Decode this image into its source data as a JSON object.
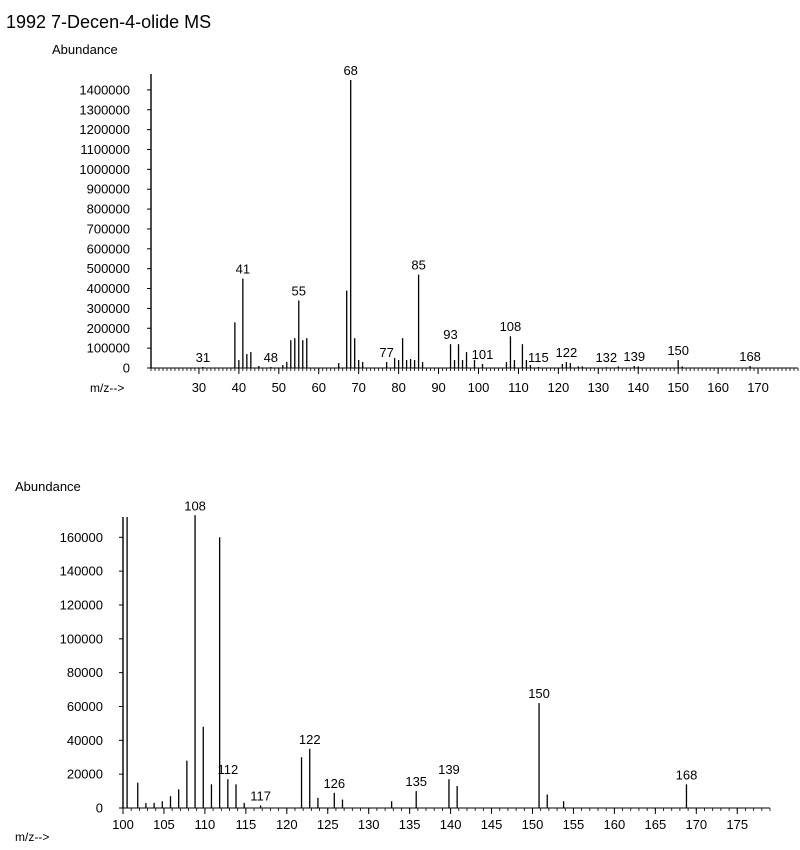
{
  "title": "1992 7-Decen-4-olide MS",
  "colors": {
    "ink": "#000000",
    "background": "#ffffff"
  },
  "chart_data": [
    {
      "type": "bar",
      "ylabel": "Abundance",
      "xlabel": "m/z-->",
      "xlim": [
        18,
        180
      ],
      "ylim": [
        0,
        1480000
      ],
      "grid": false,
      "x_ticks": [
        30,
        40,
        50,
        60,
        70,
        80,
        90,
        100,
        110,
        120,
        130,
        140,
        150,
        160,
        170
      ],
      "y_ticks": [
        0,
        100000,
        200000,
        300000,
        400000,
        500000,
        600000,
        700000,
        800000,
        900000,
        1000000,
        1100000,
        1200000,
        1300000,
        1400000
      ],
      "y_tick_labels": [
        "0",
        "100000",
        "200000",
        "300000",
        "400000",
        "500000",
        "600000",
        "700000",
        "800000",
        "900000",
        "1000000",
        "1100000",
        "1200000",
        "1300000",
        "1400000"
      ],
      "peaks": [
        {
          "mz": 31,
          "abundance": 5000,
          "label": "31"
        },
        {
          "mz": 39,
          "abundance": 230000
        },
        {
          "mz": 40,
          "abundance": 40000
        },
        {
          "mz": 41,
          "abundance": 450000,
          "label": "41"
        },
        {
          "mz": 42,
          "abundance": 70000
        },
        {
          "mz": 43,
          "abundance": 80000
        },
        {
          "mz": 45,
          "abundance": 10000
        },
        {
          "mz": 48,
          "abundance": 5000,
          "label": "48"
        },
        {
          "mz": 51,
          "abundance": 15000
        },
        {
          "mz": 52,
          "abundance": 30000
        },
        {
          "mz": 53,
          "abundance": 140000
        },
        {
          "mz": 54,
          "abundance": 150000
        },
        {
          "mz": 55,
          "abundance": 340000,
          "label": "55"
        },
        {
          "mz": 56,
          "abundance": 140000
        },
        {
          "mz": 57,
          "abundance": 150000
        },
        {
          "mz": 65,
          "abundance": 25000
        },
        {
          "mz": 67,
          "abundance": 390000
        },
        {
          "mz": 68,
          "abundance": 1450000,
          "label": "68"
        },
        {
          "mz": 69,
          "abundance": 150000
        },
        {
          "mz": 70,
          "abundance": 40000
        },
        {
          "mz": 71,
          "abundance": 30000
        },
        {
          "mz": 77,
          "abundance": 30000,
          "label": "77"
        },
        {
          "mz": 79,
          "abundance": 50000
        },
        {
          "mz": 80,
          "abundance": 40000
        },
        {
          "mz": 81,
          "abundance": 150000
        },
        {
          "mz": 82,
          "abundance": 40000
        },
        {
          "mz": 83,
          "abundance": 45000
        },
        {
          "mz": 84,
          "abundance": 40000
        },
        {
          "mz": 85,
          "abundance": 470000,
          "label": "85"
        },
        {
          "mz": 86,
          "abundance": 30000
        },
        {
          "mz": 93,
          "abundance": 120000,
          "label": "93"
        },
        {
          "mz": 94,
          "abundance": 40000
        },
        {
          "mz": 95,
          "abundance": 120000
        },
        {
          "mz": 96,
          "abundance": 40000
        },
        {
          "mz": 97,
          "abundance": 80000
        },
        {
          "mz": 99,
          "abundance": 40000
        },
        {
          "mz": 101,
          "abundance": 20000,
          "label": "101"
        },
        {
          "mz": 107,
          "abundance": 30000
        },
        {
          "mz": 108,
          "abundance": 160000,
          "label": "108"
        },
        {
          "mz": 109,
          "abundance": 40000
        },
        {
          "mz": 111,
          "abundance": 120000
        },
        {
          "mz": 112,
          "abundance": 40000
        },
        {
          "mz": 113,
          "abundance": 15000
        },
        {
          "mz": 115,
          "abundance": 5000,
          "label": "115"
        },
        {
          "mz": 121,
          "abundance": 20000
        },
        {
          "mz": 122,
          "abundance": 30000,
          "label": "122"
        },
        {
          "mz": 123,
          "abundance": 25000
        },
        {
          "mz": 125,
          "abundance": 8000
        },
        {
          "mz": 126,
          "abundance": 8000
        },
        {
          "mz": 132,
          "abundance": 4000,
          "label": "132"
        },
        {
          "mz": 135,
          "abundance": 8000
        },
        {
          "mz": 139,
          "abundance": 10000,
          "label": "139"
        },
        {
          "mz": 140,
          "abundance": 8000
        },
        {
          "mz": 150,
          "abundance": 40000,
          "label": "150"
        },
        {
          "mz": 151,
          "abundance": 8000
        },
        {
          "mz": 168,
          "abundance": 10000,
          "label": "168"
        }
      ]
    },
    {
      "type": "bar",
      "ylabel": "Abundance",
      "xlabel": "m/z-->",
      "xlim": [
        100,
        179
      ],
      "ylim": [
        0,
        172000
      ],
      "grid": false,
      "x_ticks": [
        100,
        105,
        110,
        115,
        120,
        125,
        130,
        135,
        140,
        145,
        150,
        155,
        160,
        165,
        170,
        175
      ],
      "y_ticks": [
        0,
        20000,
        40000,
        60000,
        80000,
        100000,
        120000,
        140000,
        160000
      ],
      "y_tick_labels": [
        "0",
        "20000",
        "40000",
        "60000",
        "80000",
        "100000",
        "120000",
        "140000",
        "160000"
      ],
      "peaks": [
        {
          "mz": 100.5,
          "abundance": 172000
        },
        {
          "mz": 101.8,
          "abundance": 15000
        },
        {
          "mz": 102.8,
          "abundance": 3000
        },
        {
          "mz": 103.8,
          "abundance": 3000
        },
        {
          "mz": 104.8,
          "abundance": 4000
        },
        {
          "mz": 105.8,
          "abundance": 7000
        },
        {
          "mz": 106.8,
          "abundance": 11000
        },
        {
          "mz": 107.8,
          "abundance": 28000
        },
        {
          "mz": 108.8,
          "abundance": 173000,
          "label": "108"
        },
        {
          "mz": 109.8,
          "abundance": 48000
        },
        {
          "mz": 110.8,
          "abundance": 14000
        },
        {
          "mz": 111.8,
          "abundance": 160000
        },
        {
          "mz": 112.8,
          "abundance": 17000,
          "label": "112"
        },
        {
          "mz": 113.8,
          "abundance": 14000
        },
        {
          "mz": 114.8,
          "abundance": 3000
        },
        {
          "mz": 116.8,
          "abundance": 1500,
          "label": "117"
        },
        {
          "mz": 121.8,
          "abundance": 30000
        },
        {
          "mz": 122.8,
          "abundance": 35000,
          "label": "122"
        },
        {
          "mz": 123.8,
          "abundance": 6000
        },
        {
          "mz": 125.8,
          "abundance": 9000,
          "label": "126"
        },
        {
          "mz": 126.8,
          "abundance": 5000
        },
        {
          "mz": 132.8,
          "abundance": 4000
        },
        {
          "mz": 135.8,
          "abundance": 10000,
          "label": "135"
        },
        {
          "mz": 139.8,
          "abundance": 17000,
          "label": "139"
        },
        {
          "mz": 140.8,
          "abundance": 13000
        },
        {
          "mz": 150.8,
          "abundance": 62000,
          "label": "150"
        },
        {
          "mz": 151.8,
          "abundance": 8000
        },
        {
          "mz": 153.8,
          "abundance": 4000
        },
        {
          "mz": 168.8,
          "abundance": 14000,
          "label": "168"
        }
      ]
    }
  ]
}
